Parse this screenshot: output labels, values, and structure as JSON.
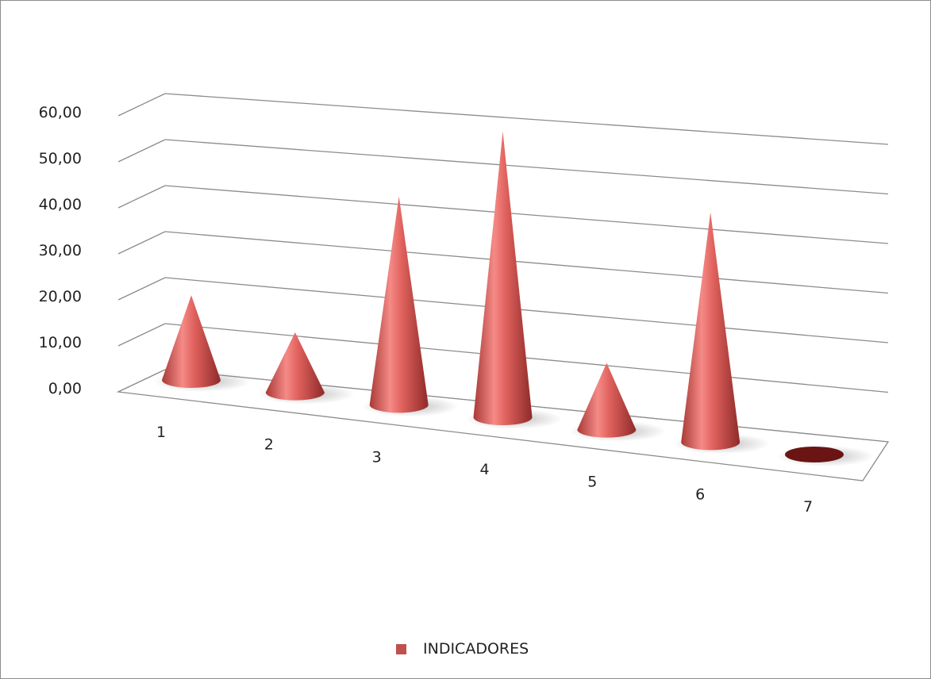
{
  "chart_data": {
    "type": "bar",
    "style": "3d-cone",
    "categories": [
      "1",
      "2",
      "3",
      "4",
      "5",
      "6",
      "7"
    ],
    "series": [
      {
        "name": "INDICADORES",
        "color": "#c0504d",
        "values": [
          20,
          14,
          48,
          65,
          15,
          51,
          0
        ]
      }
    ],
    "ylim": [
      0,
      60
    ],
    "yticks": [
      "0,00",
      "10,00",
      "20,00",
      "30,00",
      "40,00",
      "50,00",
      "60,00"
    ],
    "grid": true,
    "legend_position": "bottom"
  }
}
